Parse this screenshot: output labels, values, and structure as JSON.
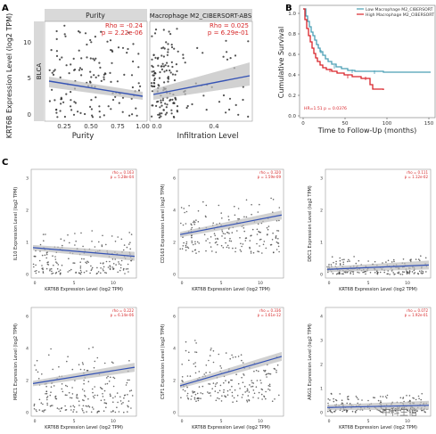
{
  "panels": {
    "A": "A",
    "B": "B",
    "C": "C"
  },
  "panel_a": {
    "y_label": "KRT6B Expression Level (log2 TPM)",
    "row_strip": "BLCA",
    "facets": [
      {
        "title": "Purity",
        "rho": "Rho = -0.24",
        "p": "p = 2.22e-06",
        "x_label": "Purity",
        "x_ticks": [
          "0.25",
          "0.50",
          "0.75",
          "1.00"
        ]
      },
      {
        "title": "Macrophage M2_CIBERSORT-ABS",
        "rho": "Rho = 0.025",
        "p": "p = 6.29e-01",
        "x_label": "Infiltration Level",
        "x_ticks": [
          "0.0",
          "0.4"
        ]
      }
    ],
    "y_ticks": [
      "0",
      "5",
      "10"
    ]
  },
  "panel_b": {
    "legend": [
      "Low Macrophage M2_CIBERSORT",
      "High Macrophage M2_CIBERSORT"
    ],
    "colors": [
      "#4a9fb5",
      "#d9242a"
    ],
    "y_label": "Cumulative Survival",
    "x_label": "Time to Follow-Up (months)",
    "y_ticks": [
      "0.0",
      "0.2",
      "0.4",
      "0.6",
      "0.8",
      "1.0"
    ],
    "x_ticks": [
      "0",
      "50",
      "100",
      "150"
    ],
    "hr_text": "HR=1.51 p = 0.0376"
  },
  "panel_c": {
    "x_label": "KRT6B Expression Level (log2 TPM)",
    "plots": [
      {
        "y_label": "IL10 Expression Level (log2 TPM)",
        "rho": "rho = 0.163",
        "p": "p = 5.28e-04",
        "y_ticks": [
          "0",
          "1",
          "2",
          "3"
        ],
        "x_ticks": [
          "0",
          "5",
          "10"
        ]
      },
      {
        "y_label": "CD163 Expression Level (log2 TPM)",
        "rho": "rho = 0.320",
        "p": "p = 1.59e-09",
        "y_ticks": [
          "0",
          "2",
          "4",
          "6"
        ],
        "x_ticks": [
          "0",
          "5",
          "10"
        ]
      },
      {
        "y_label": "DEC1 Expression Level (log2 TPM)",
        "rho": "rho = 0.111",
        "p": "p = 1.12e-02",
        "y_ticks": [
          "0",
          "1",
          "2",
          "3"
        ],
        "x_ticks": [
          "0",
          "5",
          "10"
        ]
      },
      {
        "y_label": "MRC1 Expression Level (log2 TPM)",
        "rho": "rho = 0.222",
        "p": "p = 6.14e-06",
        "y_ticks": [
          "0",
          "2",
          "4",
          "6"
        ],
        "x_ticks": [
          "0",
          "5",
          "10"
        ]
      },
      {
        "y_label": "CSF1 Expression Level (log2 TPM)",
        "rho": "rho = 0.336",
        "p": "p = 1.61e-12",
        "y_ticks": [
          "0",
          "2",
          "4",
          "6"
        ],
        "x_ticks": [
          "0",
          "5",
          "10"
        ]
      },
      {
        "y_label": "ARG1 Expression Level (log2 TPM)",
        "rho": "rho = 0.072",
        "p": "p = 1.92e-01",
        "y_ticks": [
          "0",
          "1",
          "2",
          "3",
          "4"
        ],
        "x_ticks": [
          "0",
          "5",
          "10"
        ]
      }
    ]
  },
  "watermark": "中科生信"
}
